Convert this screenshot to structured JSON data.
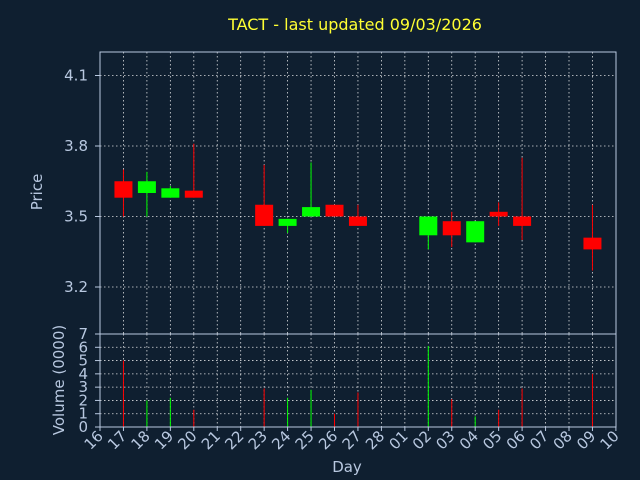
{
  "chart_data": [
    {
      "type": "candlestick",
      "title": "TACT - last updated 09/03/2026",
      "ylabel": "Price",
      "ylim": [
        3.0,
        4.2
      ],
      "yticks": [
        3.2,
        3.5,
        3.8,
        4.1
      ],
      "grid": true,
      "up_color": "#00ff00",
      "down_color": "#ff0000",
      "candles": [
        {
          "day": "17",
          "open": 3.65,
          "close": 3.58,
          "high": 3.7,
          "low": 3.5
        },
        {
          "day": "18",
          "open": 3.6,
          "close": 3.65,
          "high": 3.69,
          "low": 3.5
        },
        {
          "day": "19",
          "open": 3.58,
          "close": 3.62,
          "high": 3.63,
          "low": 3.58
        },
        {
          "day": "20",
          "open": 3.61,
          "close": 3.58,
          "high": 3.81,
          "low": 3.58
        },
        {
          "day": "23",
          "open": 3.55,
          "close": 3.46,
          "high": 3.72,
          "low": 3.46
        },
        {
          "day": "24",
          "open": 3.46,
          "close": 3.49,
          "high": 3.49,
          "low": 3.43
        },
        {
          "day": "25",
          "open": 3.5,
          "close": 3.54,
          "high": 3.73,
          "low": 3.5
        },
        {
          "day": "26",
          "open": 3.55,
          "close": 3.5,
          "high": 3.55,
          "low": 3.5
        },
        {
          "day": "27",
          "open": 3.5,
          "close": 3.46,
          "high": 3.55,
          "low": 3.46
        },
        {
          "day": "02",
          "open": 3.42,
          "close": 3.5,
          "high": 3.5,
          "low": 3.36
        },
        {
          "day": "03",
          "open": 3.48,
          "close": 3.42,
          "high": 3.52,
          "low": 3.37
        },
        {
          "day": "04",
          "open": 3.39,
          "close": 3.48,
          "high": 3.48,
          "low": 3.39
        },
        {
          "day": "05",
          "open": 3.52,
          "close": 3.5,
          "high": 3.56,
          "low": 3.46
        },
        {
          "day": "06",
          "open": 3.5,
          "close": 3.46,
          "high": 3.75,
          "low": 3.4
        },
        {
          "day": "09",
          "open": 3.41,
          "close": 3.36,
          "high": 3.55,
          "low": 3.27
        }
      ]
    },
    {
      "type": "bar",
      "ylabel": "Volume (0000)",
      "xlabel": "Day",
      "ylim": [
        0,
        7
      ],
      "yticks": [
        0,
        1,
        2,
        3,
        4,
        5,
        6,
        7
      ],
      "categories": [
        "16",
        "17",
        "18",
        "19",
        "20",
        "21",
        "22",
        "23",
        "24",
        "25",
        "26",
        "27",
        "28",
        "01",
        "02",
        "03",
        "04",
        "05",
        "06",
        "07",
        "08",
        "09",
        "10"
      ],
      "volumes": [
        {
          "day": "17",
          "value": 5.0,
          "direction": "down"
        },
        {
          "day": "18",
          "value": 2.0,
          "direction": "up"
        },
        {
          "day": "19",
          "value": 2.2,
          "direction": "up"
        },
        {
          "day": "20",
          "value": 1.3,
          "direction": "down"
        },
        {
          "day": "23",
          "value": 2.9,
          "direction": "down"
        },
        {
          "day": "24",
          "value": 2.2,
          "direction": "up"
        },
        {
          "day": "25",
          "value": 2.8,
          "direction": "up"
        },
        {
          "day": "26",
          "value": 1.0,
          "direction": "down"
        },
        {
          "day": "27",
          "value": 2.6,
          "direction": "down"
        },
        {
          "day": "02",
          "value": 6.1,
          "direction": "up"
        },
        {
          "day": "03",
          "value": 2.1,
          "direction": "down"
        },
        {
          "day": "04",
          "value": 0.8,
          "direction": "up"
        },
        {
          "day": "05",
          "value": 1.3,
          "direction": "down"
        },
        {
          "day": "06",
          "value": 2.9,
          "direction": "down"
        },
        {
          "day": "09",
          "value": 4.0,
          "direction": "down"
        }
      ]
    }
  ]
}
